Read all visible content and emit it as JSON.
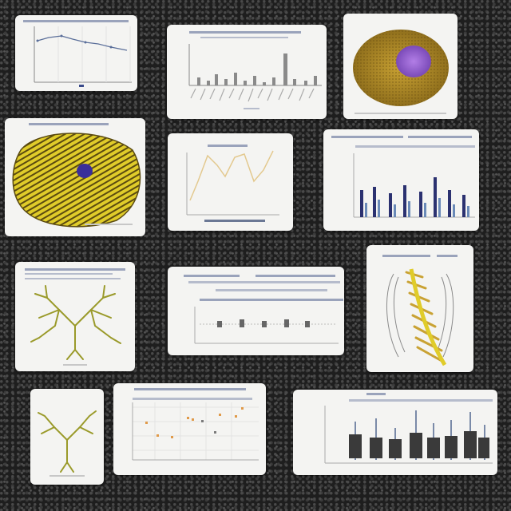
{
  "background": {
    "color": "#1e1e1e",
    "texture": "dark-speckled-noise"
  },
  "palette": {
    "card": "#f4f4f2",
    "line_blue": "#5b6f9a",
    "line_tan": "#e3c98f",
    "bar_gray": "#888888",
    "bar_navy": "#2b3170",
    "specimen_yellow": "#e0cc2a",
    "specimen_stripe": "#5a4a10",
    "blob_purple": "#8e58c8",
    "neuron_olive": "#9a9a2a",
    "scatter_orange": "#e09a4a"
  },
  "cards": [
    {
      "name": "line-chart-card",
      "content": "line-chart"
    },
    {
      "name": "bar-chart-card",
      "content": "gray-bar-chart"
    },
    {
      "name": "cell-microscopy-card",
      "content": "yellow-cell-purple-nucleus"
    },
    {
      "name": "striped-specimen-card",
      "content": "yellow-striped-specimen"
    },
    {
      "name": "tan-line-chart-card",
      "content": "tan-line-chart"
    },
    {
      "name": "navy-bar-chart-card",
      "content": "navy-bar-chart"
    },
    {
      "name": "neuron-tree-card",
      "content": "branching-neuron"
    },
    {
      "name": "dot-plot-card",
      "content": "dot-plot"
    },
    {
      "name": "spine-illustration-card",
      "content": "golden-spine-illustration"
    },
    {
      "name": "small-neuron-card",
      "content": "small-branching-neuron"
    },
    {
      "name": "scatter-card",
      "content": "scatter-grid"
    },
    {
      "name": "boxplot-card",
      "content": "boxplot-series"
    }
  ]
}
